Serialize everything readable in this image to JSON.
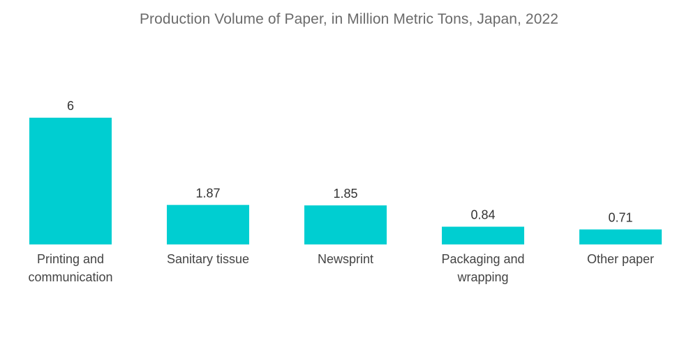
{
  "chart_data": {
    "type": "bar",
    "title": "Production Volume of Paper, in Million Metric Tons, Japan, 2022",
    "xlabel": "",
    "ylabel": "",
    "categories": [
      [
        "Printing and",
        "communication"
      ],
      [
        "Sanitary tissue"
      ],
      [
        "Newsprint"
      ],
      [
        "Packaging and",
        "wrapping"
      ],
      [
        "Other paper"
      ]
    ],
    "values": [
      6,
      1.87,
      1.85,
      0.84,
      0.71
    ],
    "value_labels": [
      "6",
      "1.87",
      "1.85",
      "0.84",
      "0.71"
    ],
    "ylim": [
      0,
      6
    ],
    "grid": false,
    "legend": "none",
    "bar_color": "#00ced1"
  }
}
